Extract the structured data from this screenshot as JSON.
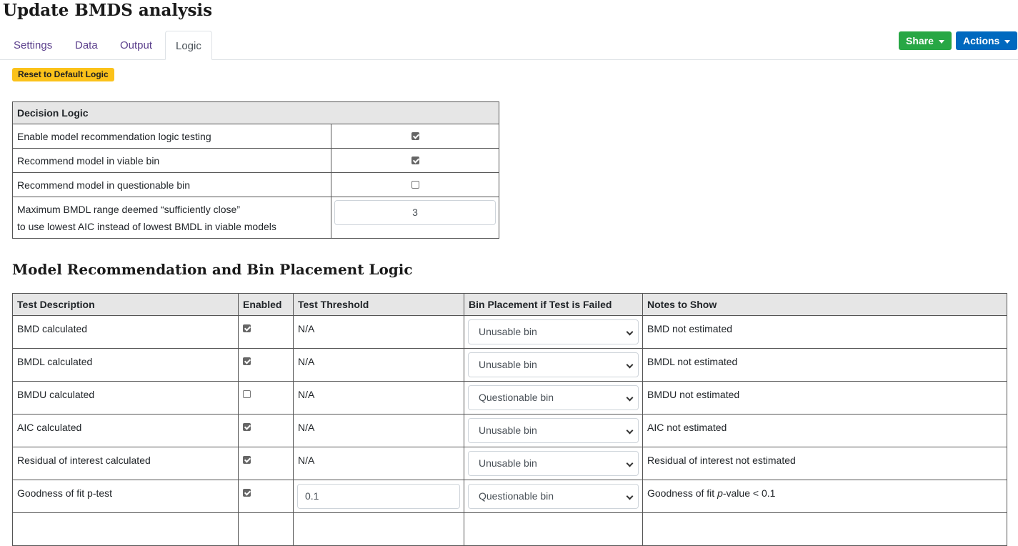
{
  "title": "Update BMDS analysis",
  "tabs": [
    {
      "label": "Settings"
    },
    {
      "label": "Data"
    },
    {
      "label": "Output"
    },
    {
      "label": "Logic"
    }
  ],
  "buttons": {
    "share": "Share",
    "actions": "Actions",
    "reset": "Reset to Default Logic"
  },
  "colors": {
    "share": "#28a745",
    "actions": "#0069bf",
    "reset": "#fbc21a"
  },
  "decision": {
    "header": "Decision Logic",
    "rows": [
      {
        "label": "Enable model recommendation logic testing",
        "checked": true
      },
      {
        "label": "Recommend model in viable bin",
        "checked": true
      },
      {
        "label": "Recommend model in questionable bin",
        "checked": false
      }
    ],
    "range_label_1": "Maximum BMDL range deemed “sufficiently close”",
    "range_label_2": "to use lowest AIC instead of lowest BMDL in viable models",
    "range_value": "3"
  },
  "section_title": "Model Recommendation and Bin Placement Logic",
  "tests": {
    "headers": [
      "Test Description",
      "Enabled",
      "Test Threshold",
      "Bin Placement if Test is Failed",
      "Notes to Show"
    ],
    "rows": [
      {
        "desc": "BMD calculated",
        "enabled": true,
        "threshold": "N/A",
        "bin": "Unusable bin",
        "notes": "BMD not estimated"
      },
      {
        "desc": "BMDL calculated",
        "enabled": true,
        "threshold": "N/A",
        "bin": "Unusable bin",
        "notes": "BMDL not estimated"
      },
      {
        "desc": "BMDU calculated",
        "enabled": false,
        "threshold": "N/A",
        "bin": "Questionable bin",
        "notes": "BMDU not estimated"
      },
      {
        "desc": "AIC calculated",
        "enabled": true,
        "threshold": "N/A",
        "bin": "Unusable bin",
        "notes": "AIC not estimated"
      },
      {
        "desc": "Residual of interest calculated",
        "enabled": true,
        "threshold": "N/A",
        "bin": "Unusable bin",
        "notes": "Residual of interest not estimated"
      },
      {
        "desc": "Goodness of fit p-test",
        "enabled": true,
        "threshold_input": "0.1",
        "bin": "Questionable bin",
        "notes_pre": "Goodness of fit ",
        "notes_em": "p",
        "notes_post": "-value < 0.1"
      }
    ]
  }
}
